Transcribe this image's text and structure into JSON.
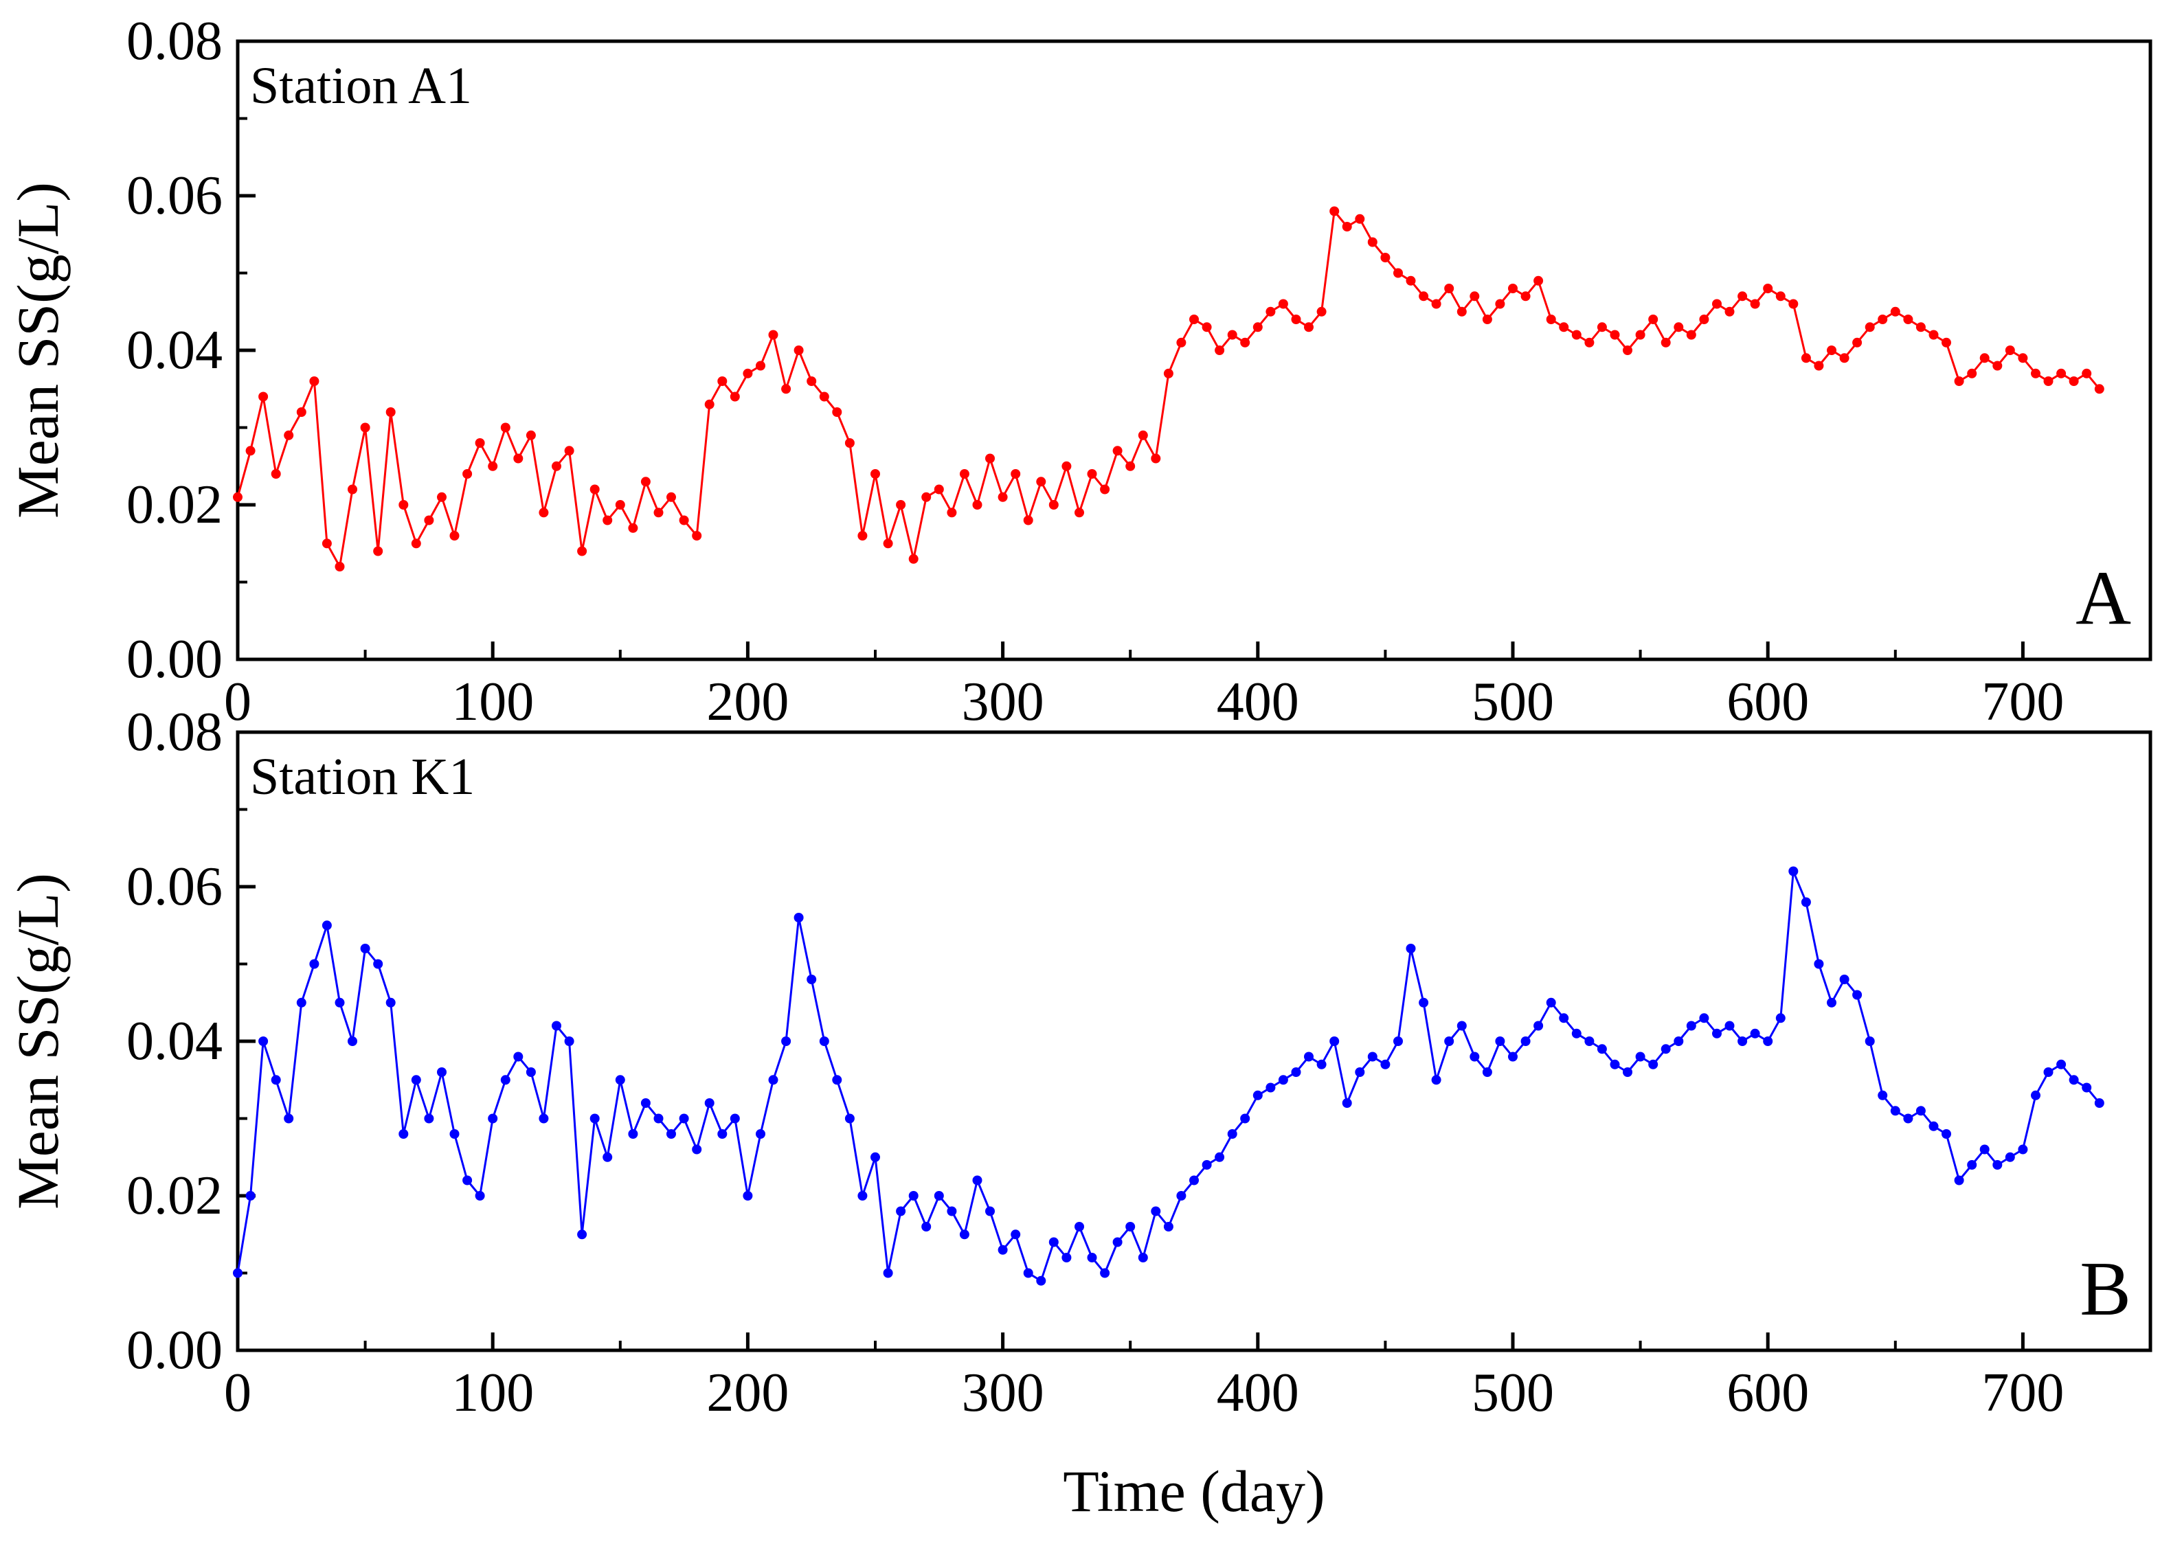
{
  "chart_data": [
    {
      "type": "line",
      "panel_label": "A",
      "title": "Station A1",
      "xlabel": "Time (day)",
      "ylabel": "Mean SS(g/L)",
      "xlim": [
        0,
        750
      ],
      "ylim": [
        0.0,
        0.08
      ],
      "x_ticks": [
        0,
        100,
        200,
        300,
        400,
        500,
        600,
        700
      ],
      "x_tick_labels": [
        "0",
        "100",
        "200",
        "300",
        "400",
        "500",
        "600",
        "700"
      ],
      "y_ticks": [
        0.0,
        0.02,
        0.04,
        0.06,
        0.08
      ],
      "y_tick_labels": [
        "0.00",
        "0.02",
        "0.04",
        "0.06",
        "0.08"
      ],
      "color": "#ff0000",
      "marker": "circle",
      "series": [
        {
          "name": "Station A1",
          "x": [
            0,
            5,
            10,
            15,
            20,
            25,
            30,
            35,
            40,
            45,
            50,
            55,
            60,
            65,
            70,
            75,
            80,
            85,
            90,
            95,
            100,
            105,
            110,
            115,
            120,
            125,
            130,
            135,
            140,
            145,
            150,
            155,
            160,
            165,
            170,
            175,
            180,
            185,
            190,
            195,
            200,
            205,
            210,
            215,
            220,
            225,
            230,
            235,
            240,
            245,
            250,
            255,
            260,
            265,
            270,
            275,
            280,
            285,
            290,
            295,
            300,
            305,
            310,
            315,
            320,
            325,
            330,
            335,
            340,
            345,
            350,
            355,
            360,
            365,
            370,
            375,
            380,
            385,
            390,
            395,
            400,
            405,
            410,
            415,
            420,
            425,
            430,
            435,
            440,
            445,
            450,
            455,
            460,
            465,
            470,
            475,
            480,
            485,
            490,
            495,
            500,
            505,
            510,
            515,
            520,
            525,
            530,
            535,
            540,
            545,
            550,
            555,
            560,
            565,
            570,
            575,
            580,
            585,
            590,
            595,
            600,
            605,
            610,
            615,
            620,
            625,
            630,
            635,
            640,
            645,
            650,
            655,
            660,
            665,
            670,
            675,
            680,
            685,
            690,
            695,
            700,
            705,
            710,
            715,
            720,
            725,
            730
          ],
          "values": [
            0.021,
            0.027,
            0.034,
            0.024,
            0.029,
            0.032,
            0.036,
            0.015,
            0.012,
            0.022,
            0.03,
            0.014,
            0.032,
            0.02,
            0.015,
            0.018,
            0.021,
            0.016,
            0.024,
            0.028,
            0.025,
            0.03,
            0.026,
            0.029,
            0.019,
            0.025,
            0.027,
            0.014,
            0.022,
            0.018,
            0.02,
            0.017,
            0.023,
            0.019,
            0.021,
            0.018,
            0.016,
            0.033,
            0.036,
            0.034,
            0.037,
            0.038,
            0.042,
            0.035,
            0.04,
            0.036,
            0.034,
            0.032,
            0.028,
            0.016,
            0.024,
            0.015,
            0.02,
            0.013,
            0.021,
            0.022,
            0.019,
            0.024,
            0.02,
            0.026,
            0.021,
            0.024,
            0.018,
            0.023,
            0.02,
            0.025,
            0.019,
            0.024,
            0.022,
            0.027,
            0.025,
            0.029,
            0.026,
            0.037,
            0.041,
            0.044,
            0.043,
            0.04,
            0.042,
            0.041,
            0.043,
            0.045,
            0.046,
            0.044,
            0.043,
            0.045,
            0.058,
            0.056,
            0.057,
            0.054,
            0.052,
            0.05,
            0.049,
            0.047,
            0.046,
            0.048,
            0.045,
            0.047,
            0.044,
            0.046,
            0.048,
            0.047,
            0.049,
            0.044,
            0.043,
            0.042,
            0.041,
            0.043,
            0.042,
            0.04,
            0.042,
            0.044,
            0.041,
            0.043,
            0.042,
            0.044,
            0.046,
            0.045,
            0.047,
            0.046,
            0.048,
            0.047,
            0.046,
            0.039,
            0.038,
            0.04,
            0.039,
            0.041,
            0.043,
            0.044,
            0.045,
            0.044,
            0.043,
            0.042,
            0.041,
            0.036,
            0.037,
            0.039,
            0.038,
            0.04,
            0.039,
            0.037,
            0.036,
            0.037,
            0.036,
            0.037,
            0.035
          ]
        }
      ]
    },
    {
      "type": "line",
      "panel_label": "B",
      "title": "Station K1",
      "xlabel": "Time (day)",
      "ylabel": "Mean SS(g/L)",
      "xlim": [
        0,
        750
      ],
      "ylim": [
        0.0,
        0.08
      ],
      "x_ticks": [
        0,
        100,
        200,
        300,
        400,
        500,
        600,
        700
      ],
      "x_tick_labels": [
        "0",
        "100",
        "200",
        "300",
        "400",
        "500",
        "600",
        "700"
      ],
      "y_ticks": [
        0.0,
        0.02,
        0.04,
        0.06,
        0.08
      ],
      "y_tick_labels": [
        "0.00",
        "0.02",
        "0.04",
        "0.06",
        "0.08"
      ],
      "color": "#0000ff",
      "marker": "circle",
      "series": [
        {
          "name": "Station K1",
          "x": [
            0,
            5,
            10,
            15,
            20,
            25,
            30,
            35,
            40,
            45,
            50,
            55,
            60,
            65,
            70,
            75,
            80,
            85,
            90,
            95,
            100,
            105,
            110,
            115,
            120,
            125,
            130,
            135,
            140,
            145,
            150,
            155,
            160,
            165,
            170,
            175,
            180,
            185,
            190,
            195,
            200,
            205,
            210,
            215,
            220,
            225,
            230,
            235,
            240,
            245,
            250,
            255,
            260,
            265,
            270,
            275,
            280,
            285,
            290,
            295,
            300,
            305,
            310,
            315,
            320,
            325,
            330,
            335,
            340,
            345,
            350,
            355,
            360,
            365,
            370,
            375,
            380,
            385,
            390,
            395,
            400,
            405,
            410,
            415,
            420,
            425,
            430,
            435,
            440,
            445,
            450,
            455,
            460,
            465,
            470,
            475,
            480,
            485,
            490,
            495,
            500,
            505,
            510,
            515,
            520,
            525,
            530,
            535,
            540,
            545,
            550,
            555,
            560,
            565,
            570,
            575,
            580,
            585,
            590,
            595,
            600,
            605,
            610,
            615,
            620,
            625,
            630,
            635,
            640,
            645,
            650,
            655,
            660,
            665,
            670,
            675,
            680,
            685,
            690,
            695,
            700,
            705,
            710,
            715,
            720,
            725,
            730
          ],
          "values": [
            0.01,
            0.02,
            0.04,
            0.035,
            0.03,
            0.045,
            0.05,
            0.055,
            0.045,
            0.04,
            0.052,
            0.05,
            0.045,
            0.028,
            0.035,
            0.03,
            0.036,
            0.028,
            0.022,
            0.02,
            0.03,
            0.035,
            0.038,
            0.036,
            0.03,
            0.042,
            0.04,
            0.015,
            0.03,
            0.025,
            0.035,
            0.028,
            0.032,
            0.03,
            0.028,
            0.03,
            0.026,
            0.032,
            0.028,
            0.03,
            0.02,
            0.028,
            0.035,
            0.04,
            0.056,
            0.048,
            0.04,
            0.035,
            0.03,
            0.02,
            0.025,
            0.01,
            0.018,
            0.02,
            0.016,
            0.02,
            0.018,
            0.015,
            0.022,
            0.018,
            0.013,
            0.015,
            0.01,
            0.009,
            0.014,
            0.012,
            0.016,
            0.012,
            0.01,
            0.014,
            0.016,
            0.012,
            0.018,
            0.016,
            0.02,
            0.022,
            0.024,
            0.025,
            0.028,
            0.03,
            0.033,
            0.034,
            0.035,
            0.036,
            0.038,
            0.037,
            0.04,
            0.032,
            0.036,
            0.038,
            0.037,
            0.04,
            0.052,
            0.045,
            0.035,
            0.04,
            0.042,
            0.038,
            0.036,
            0.04,
            0.038,
            0.04,
            0.042,
            0.045,
            0.043,
            0.041,
            0.04,
            0.039,
            0.037,
            0.036,
            0.038,
            0.037,
            0.039,
            0.04,
            0.042,
            0.043,
            0.041,
            0.042,
            0.04,
            0.041,
            0.04,
            0.043,
            0.062,
            0.058,
            0.05,
            0.045,
            0.048,
            0.046,
            0.04,
            0.033,
            0.031,
            0.03,
            0.031,
            0.029,
            0.028,
            0.022,
            0.024,
            0.026,
            0.024,
            0.025,
            0.026,
            0.033,
            0.036,
            0.037,
            0.035,
            0.034,
            0.032
          ]
        }
      ]
    }
  ]
}
